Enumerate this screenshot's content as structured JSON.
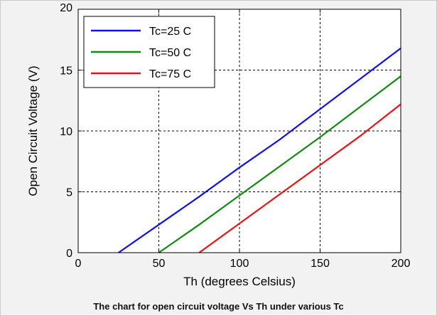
{
  "caption": "The chart for open circuit voltage Vs Th under various Tc",
  "chart_data": {
    "type": "line",
    "title": "",
    "xlabel": "Th (degrees Celsius)",
    "ylabel": "Open Circuit Voltage (V)",
    "xlim": [
      0,
      200
    ],
    "ylim": [
      0,
      20
    ],
    "xticks": [
      0,
      50,
      100,
      150,
      200
    ],
    "yticks": [
      0,
      5,
      10,
      15,
      20
    ],
    "grid": true,
    "grid_style": "dashed",
    "legend_position": "top-left",
    "series": [
      {
        "name": "Tc=25 C",
        "color": "#1010ee",
        "x": [
          25,
          50,
          75,
          100,
          125,
          150,
          175,
          200
        ],
        "y": [
          0.0,
          2.3,
          4.6,
          7.0,
          9.3,
          11.8,
          14.3,
          16.8
        ]
      },
      {
        "name": "Tc=50 C",
        "color": "#118a11",
        "x": [
          50,
          75,
          100,
          125,
          150,
          175,
          200
        ],
        "y": [
          0.0,
          2.3,
          4.7,
          7.1,
          9.5,
          12.0,
          14.5
        ]
      },
      {
        "name": "Tc=75 C",
        "color": "#ee1111",
        "x": [
          75,
          100,
          125,
          150,
          175,
          200
        ],
        "y": [
          0.0,
          2.4,
          4.8,
          7.2,
          9.6,
          12.2
        ]
      }
    ]
  }
}
